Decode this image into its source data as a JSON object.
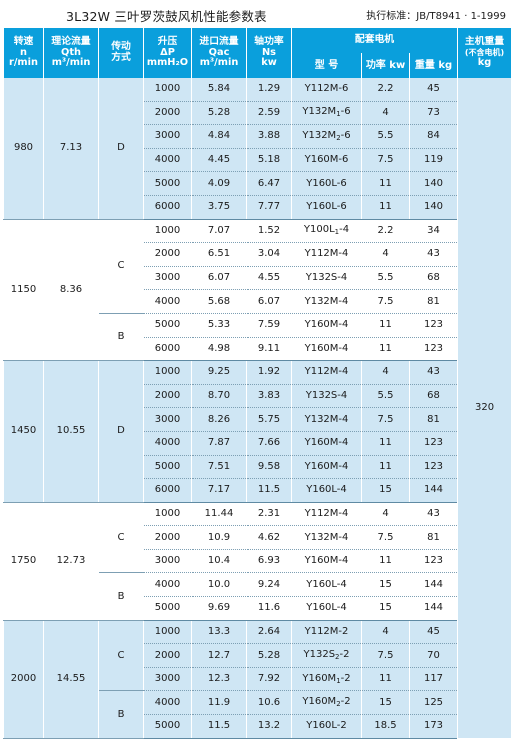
{
  "title": "3L32W 三叶罗茨鼓风机性能参数表",
  "standard": "执行标准：JB/T8941 · 1-1999",
  "headers": {
    "speed": [
      "转速",
      "n",
      "r/min"
    ],
    "flow": [
      "理论流量",
      "Qth",
      "m³/min"
    ],
    "drive": [
      "传动",
      "方式"
    ],
    "pressure": [
      "升压",
      "ΔP",
      "mmH₂O"
    ],
    "inlet": [
      "进口流量",
      "Qac",
      "m³/min"
    ],
    "shaft": [
      "轴功率",
      "Ns",
      "kw"
    ],
    "motor": "配套电机",
    "motor_model": "型 号",
    "motor_power": "功率 kw",
    "motor_weight": "重量 kg",
    "mass": [
      "主机重量",
      "(不含电机)",
      "kg"
    ]
  },
  "host_mass": "320",
  "groups": [
    {
      "speed": "980",
      "flow": "7.13",
      "drives": [
        {
          "mode": "D",
          "rows": [
            {
              "p": "1000",
              "q": "5.84",
              "n": "1.29",
              "model": "Y112M-6",
              "kw": "2.2",
              "kg": "45"
            },
            {
              "p": "2000",
              "q": "5.28",
              "n": "2.59",
              "model": "Y132M1-6",
              "kw": "4",
              "kg": "73"
            },
            {
              "p": "3000",
              "q": "4.84",
              "n": "3.88",
              "model": "Y132M2-6",
              "kw": "5.5",
              "kg": "84"
            },
            {
              "p": "4000",
              "q": "4.45",
              "n": "5.18",
              "model": "Y160M-6",
              "kw": "7.5",
              "kg": "119"
            },
            {
              "p": "5000",
              "q": "4.09",
              "n": "6.47",
              "model": "Y160L-6",
              "kw": "11",
              "kg": "140"
            },
            {
              "p": "6000",
              "q": "3.75",
              "n": "7.77",
              "model": "Y160L-6",
              "kw": "11",
              "kg": "140"
            }
          ]
        }
      ]
    },
    {
      "speed": "1150",
      "flow": "8.36",
      "drives": [
        {
          "mode": "C",
          "rows": [
            {
              "p": "1000",
              "q": "7.07",
              "n": "1.52",
              "model": "Y100L1-4",
              "kw": "2.2",
              "kg": "34"
            },
            {
              "p": "2000",
              "q": "6.51",
              "n": "3.04",
              "model": "Y112M-4",
              "kw": "4",
              "kg": "43"
            },
            {
              "p": "3000",
              "q": "6.07",
              "n": "4.55",
              "model": "Y132S-4",
              "kw": "5.5",
              "kg": "68"
            },
            {
              "p": "4000",
              "q": "5.68",
              "n": "6.07",
              "model": "Y132M-4",
              "kw": "7.5",
              "kg": "81"
            }
          ]
        },
        {
          "mode": "B",
          "rows": [
            {
              "p": "5000",
              "q": "5.33",
              "n": "7.59",
              "model": "Y160M-4",
              "kw": "11",
              "kg": "123"
            },
            {
              "p": "6000",
              "q": "4.98",
              "n": "9.11",
              "model": "Y160M-4",
              "kw": "11",
              "kg": "123"
            }
          ]
        }
      ]
    },
    {
      "speed": "1450",
      "flow": "10.55",
      "drives": [
        {
          "mode": "D",
          "rows": [
            {
              "p": "1000",
              "q": "9.25",
              "n": "1.92",
              "model": "Y112M-4",
              "kw": "4",
              "kg": "43"
            },
            {
              "p": "2000",
              "q": "8.70",
              "n": "3.83",
              "model": "Y132S-4",
              "kw": "5.5",
              "kg": "68"
            },
            {
              "p": "3000",
              "q": "8.26",
              "n": "5.75",
              "model": "Y132M-4",
              "kw": "7.5",
              "kg": "81"
            },
            {
              "p": "4000",
              "q": "7.87",
              "n": "7.66",
              "model": "Y160M-4",
              "kw": "11",
              "kg": "123"
            },
            {
              "p": "5000",
              "q": "7.51",
              "n": "9.58",
              "model": "Y160M-4",
              "kw": "11",
              "kg": "123"
            },
            {
              "p": "6000",
              "q": "7.17",
              "n": "11.5",
              "model": "Y160L-4",
              "kw": "15",
              "kg": "144"
            }
          ]
        }
      ]
    },
    {
      "speed": "1750",
      "flow": "12.73",
      "drives": [
        {
          "mode": "C",
          "rows": [
            {
              "p": "1000",
              "q": "11.44",
              "n": "2.31",
              "model": "Y112M-4",
              "kw": "4",
              "kg": "43"
            },
            {
              "p": "2000",
              "q": "10.9",
              "n": "4.62",
              "model": "Y132M-4",
              "kw": "7.5",
              "kg": "81"
            },
            {
              "p": "3000",
              "q": "10.4",
              "n": "6.93",
              "model": "Y160M-4",
              "kw": "11",
              "kg": "123"
            }
          ]
        },
        {
          "mode": "B",
          "rows": [
            {
              "p": "4000",
              "q": "10.0",
              "n": "9.24",
              "model": "Y160L-4",
              "kw": "15",
              "kg": "144"
            },
            {
              "p": "5000",
              "q": "9.69",
              "n": "11.6",
              "model": "Y160L-4",
              "kw": "15",
              "kg": "144"
            }
          ]
        }
      ]
    },
    {
      "speed": "2000",
      "flow": "14.55",
      "drives": [
        {
          "mode": "C",
          "rows": [
            {
              "p": "1000",
              "q": "13.3",
              "n": "2.64",
              "model": "Y112M-2",
              "kw": "4",
              "kg": "45"
            },
            {
              "p": "2000",
              "q": "12.7",
              "n": "5.28",
              "model": "Y132S2-2",
              "kw": "7.5",
              "kg": "70"
            },
            {
              "p": "3000",
              "q": "12.3",
              "n": "7.92",
              "model": "Y160M1-2",
              "kw": "11",
              "kg": "117"
            }
          ]
        },
        {
          "mode": "B",
          "rows": [
            {
              "p": "4000",
              "q": "11.9",
              "n": "10.6",
              "model": "Y160M2-2",
              "kw": "15",
              "kg": "125"
            },
            {
              "p": "5000",
              "q": "11.5",
              "n": "13.2",
              "model": "Y160L-2",
              "kw": "18.5",
              "kg": "173"
            }
          ]
        }
      ]
    }
  ]
}
